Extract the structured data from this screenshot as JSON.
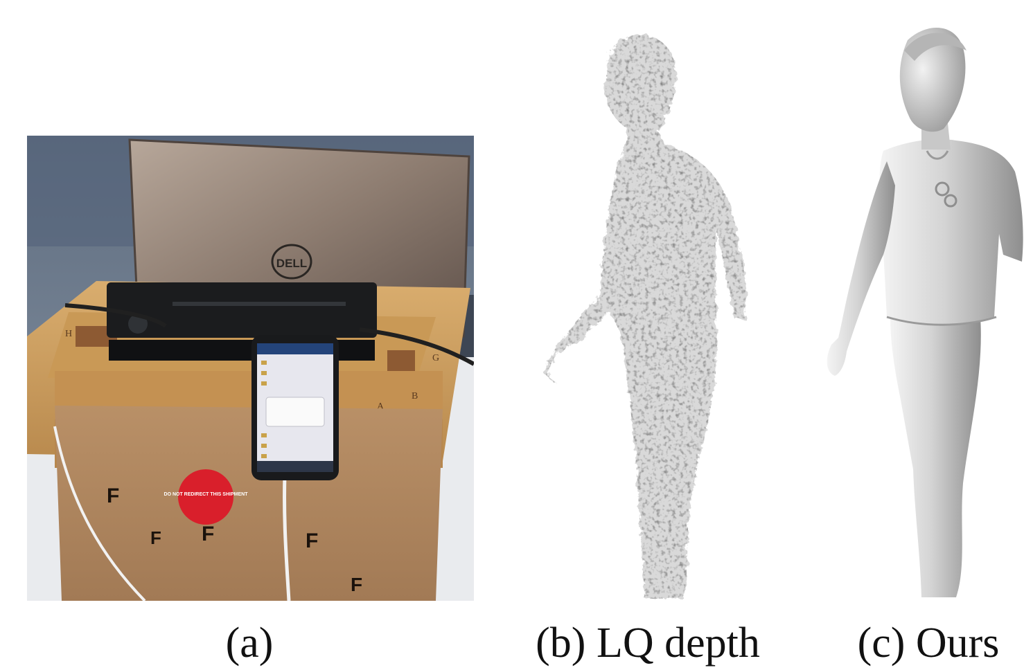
{
  "figure": {
    "captions": {
      "a": "(a)",
      "b": "(b) LQ depth",
      "c": "(c) Ours"
    },
    "panel_a": {
      "laptop_logo": "DELL",
      "box_letters": [
        "F",
        "F",
        "F",
        "F",
        "F"
      ],
      "board_letters": [
        "A",
        "B",
        "G",
        "H"
      ],
      "sticker_text": "DO NOT REDIRECT THIS SHIPMENT"
    }
  }
}
